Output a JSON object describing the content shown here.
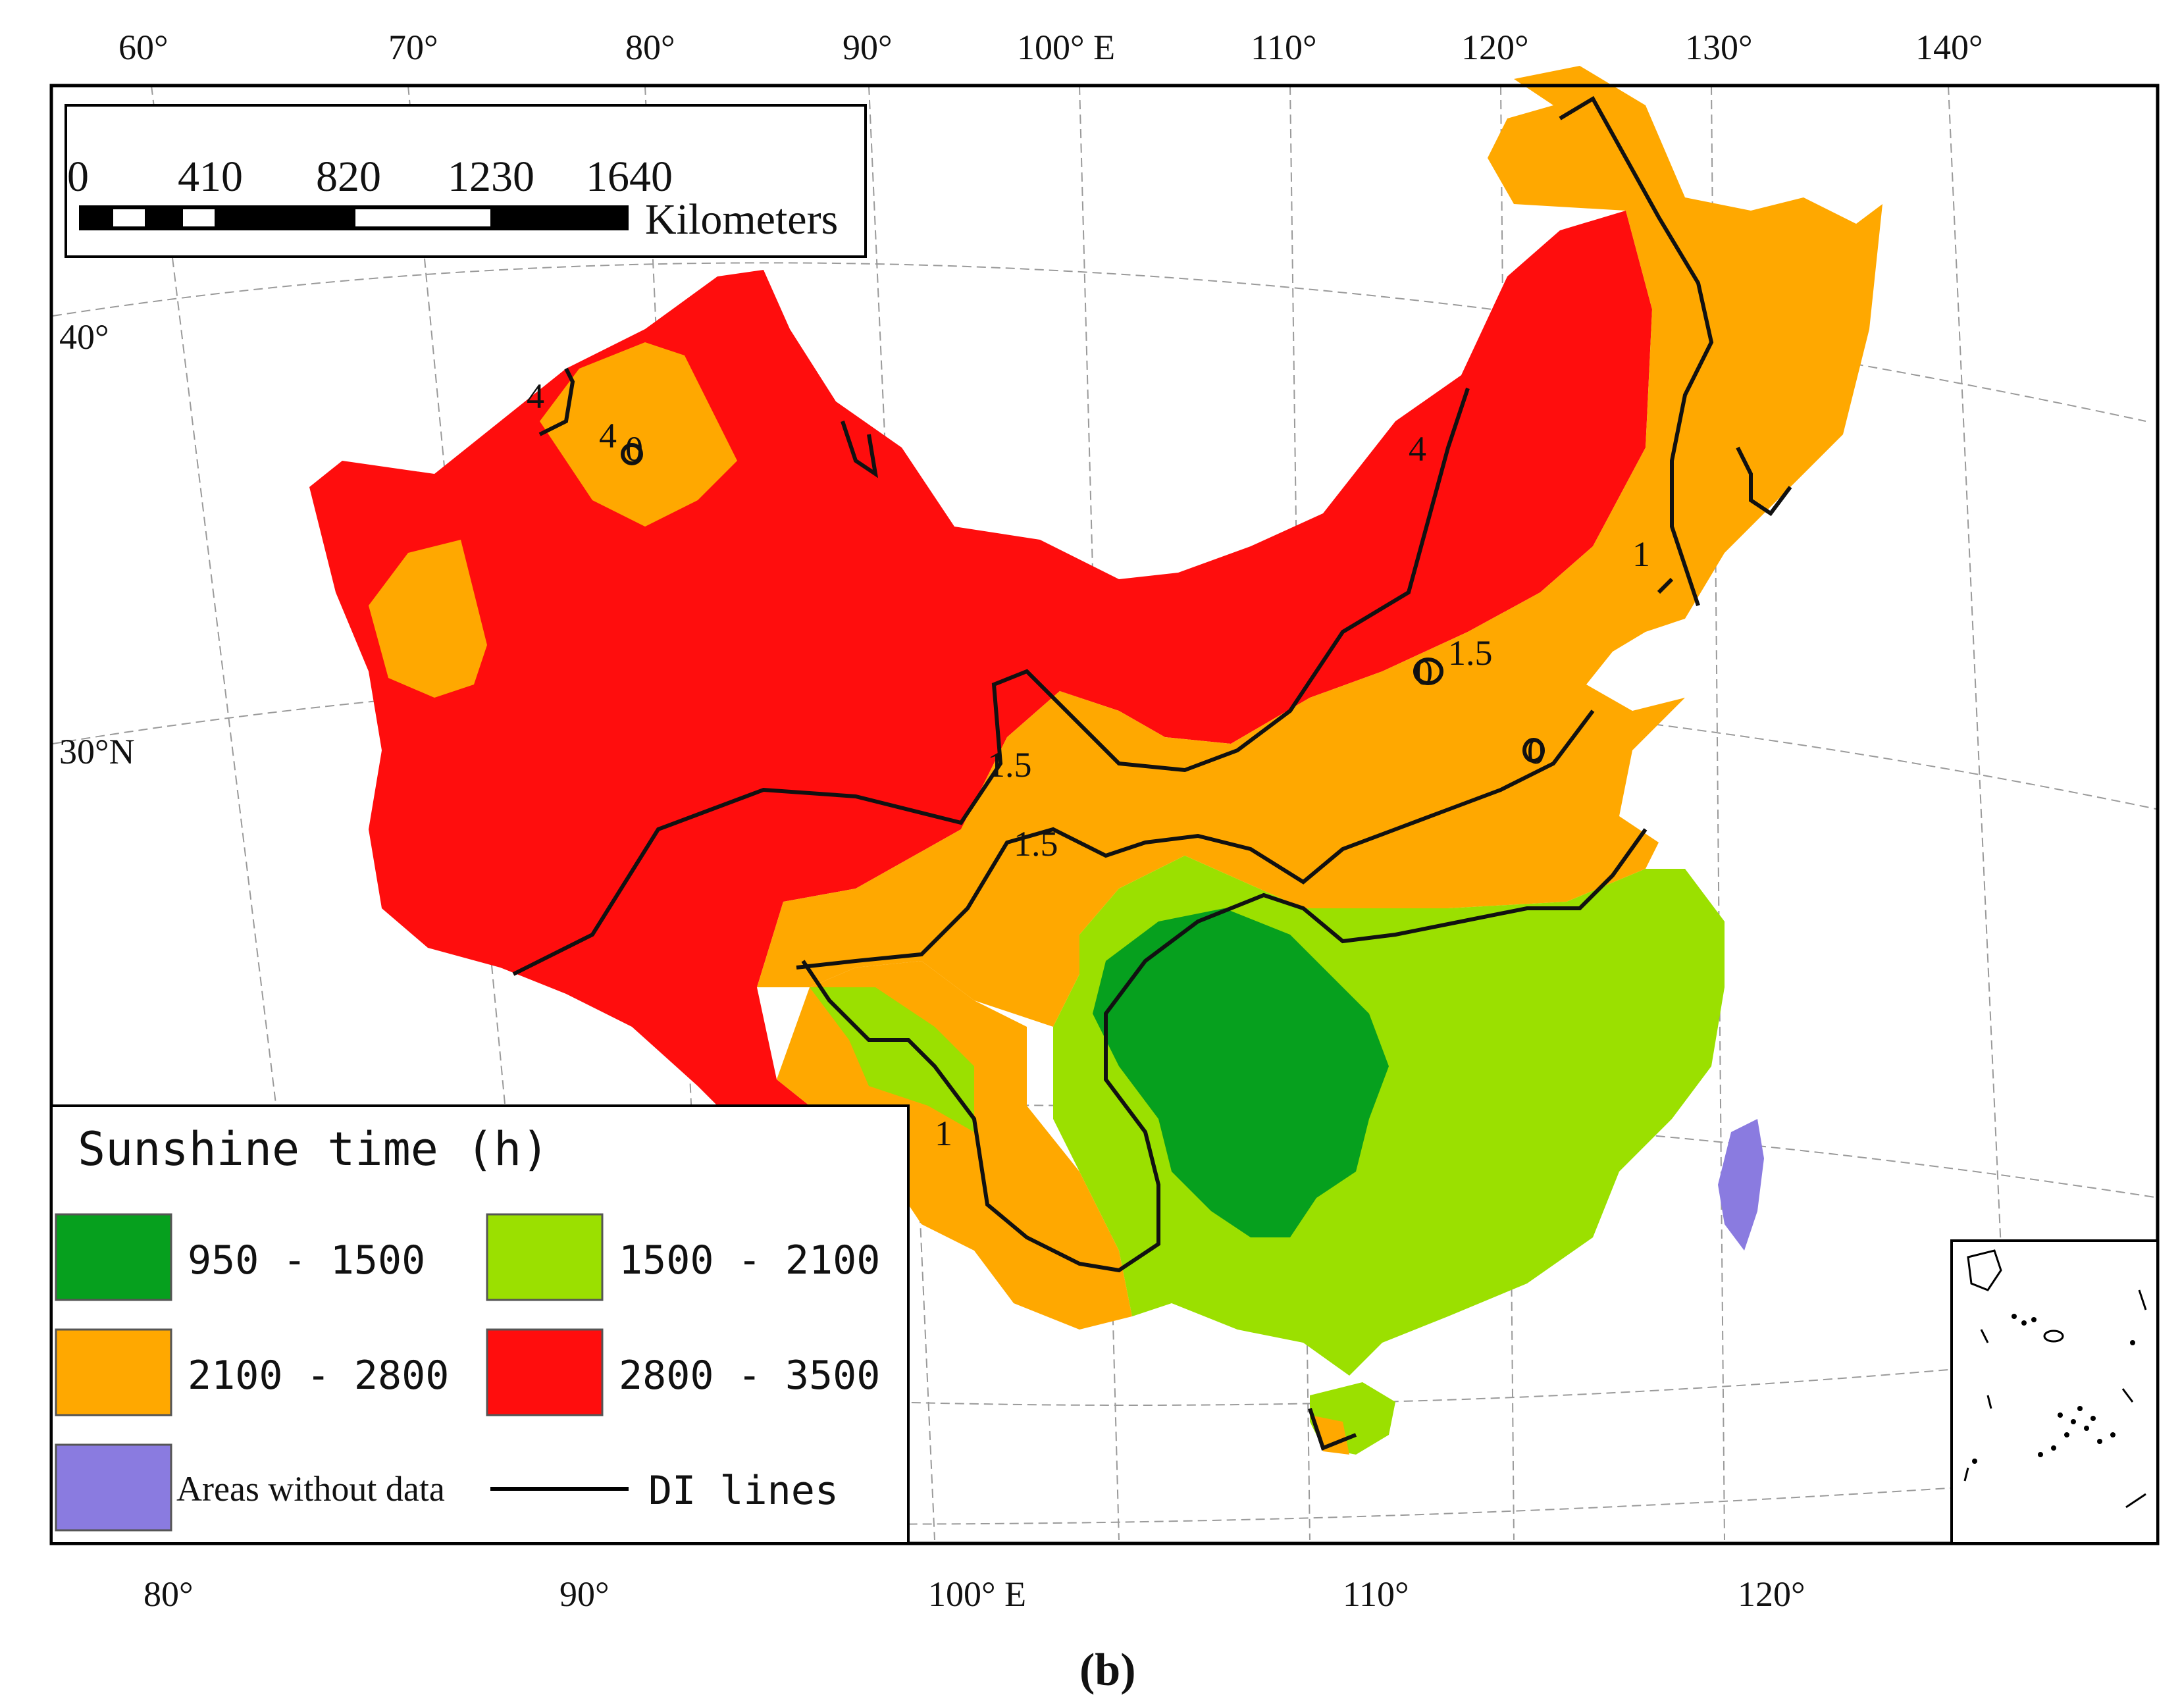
{
  "map": {
    "top_longitude_labels": [
      "60°",
      "70°",
      "80°",
      "90°",
      "100° E",
      "110°",
      "120°",
      "130°",
      "140°"
    ],
    "bottom_longitude_labels": [
      "80°",
      "90°",
      "100° E",
      "110°",
      "120°"
    ],
    "latitude_labels": [
      "40°",
      "30°N"
    ],
    "contour_labels": [
      "4",
      "4",
      "0",
      "4",
      "1.5",
      "0",
      "1.5",
      "0",
      "1.5",
      "1",
      "1"
    ],
    "caption": "(b)"
  },
  "scale_bar": {
    "ticks": [
      "0",
      "410",
      "820",
      "1230",
      "1640"
    ],
    "unit": "Kilometers"
  },
  "legend": {
    "title": "Sunshine time  (h)",
    "items": [
      {
        "label": "950 - 1500",
        "color": "#06a01e"
      },
      {
        "label": "1500 - 2100",
        "color": "#9be000"
      },
      {
        "label": "2100 - 2800",
        "color": "#ffa800"
      },
      {
        "label": "2800 - 3500",
        "color": "#ff0d0d"
      },
      {
        "label": "Areas without data",
        "color": "#8a7be0"
      }
    ],
    "line_item": "DI lines"
  },
  "colors": {
    "dark_green": "#06a01e",
    "light_green": "#9be000",
    "orange": "#ffa800",
    "red": "#ff0d0d",
    "no_data": "#8a7be0"
  }
}
